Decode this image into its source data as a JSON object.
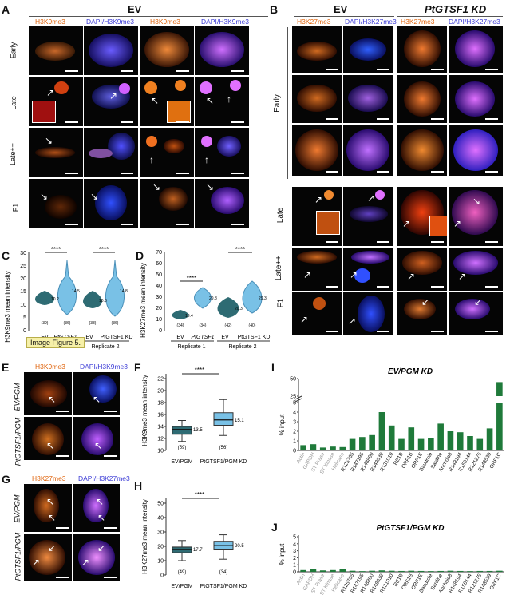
{
  "panels": {
    "A": "A",
    "B": "B",
    "C": "C",
    "D": "D",
    "E": "E",
    "F": "F",
    "G": "G",
    "H": "H",
    "I": "I",
    "J": "J"
  },
  "A": {
    "group_title": "EV",
    "col_headers": [
      "H3K9me3",
      "DAPI/H3K9me3",
      "H3K9me3",
      "DAPI/H3K9me3"
    ],
    "row_labels": [
      "Early",
      "Late",
      "Late++",
      "F1"
    ]
  },
  "B": {
    "group_ev": "EV",
    "group_kd": "PtGTSF1 KD",
    "col_headers": [
      "H3K27me3",
      "DAPI/H3K27me3",
      "H3K27me3",
      "DAPI/H3K27me3"
    ],
    "row_labels": [
      "Early",
      "Late",
      "Late++",
      "F1"
    ]
  },
  "C": {
    "ylabel": "H3K9me3 mean intensity",
    "yticks": [
      "0",
      "5",
      "10",
      "15",
      "20",
      "25",
      "30"
    ],
    "sig": [
      "****",
      "****"
    ],
    "medians": [
      "10.2",
      "14.5",
      "10.3",
      "14.8"
    ],
    "ns": [
      "(39)",
      "(36)",
      "(38)",
      "(36)"
    ],
    "xcats": [
      "EV",
      "PtGTSF1",
      "EV",
      "PtGTSF1 KD"
    ],
    "replicates": [
      "Replicate 2"
    ],
    "tooltip": "Image Figure 5."
  },
  "D": {
    "ylabel": "H3K27me3 mean intensity",
    "yticks": [
      "0",
      "10",
      "20",
      "30",
      "40",
      "50",
      "60",
      "70"
    ],
    "sig": [
      "****",
      "****"
    ],
    "medians": [
      "13.4",
      "29.8",
      "20.3",
      "29.3"
    ],
    "ns": [
      "(34)",
      "(34)",
      "(42)",
      "(40)"
    ],
    "xcats": [
      "EV",
      "PtGTSF1",
      "EV",
      "PtGTSF1 KD"
    ],
    "replicates": [
      "Replicate 1",
      "Replicate 2"
    ]
  },
  "E": {
    "col_headers": [
      "H3K9me3",
      "DAPI/H3K9me3"
    ],
    "row_labels": [
      "EV/PGM",
      "PtGTSF1/PGM"
    ]
  },
  "G": {
    "col_headers": [
      "H3K27me3",
      "DAPI/H3K27me3"
    ],
    "row_labels": [
      "EV/PGM",
      "PtGTSF1/PGM"
    ]
  },
  "F": {
    "ylabel": "H3K9me3 mean intensity",
    "yticks": [
      "10",
      "12",
      "14",
      "16",
      "18",
      "20",
      "22"
    ],
    "sig": "****",
    "xcats": [
      "EV/PGM",
      "PtGTSF1/PGM KD"
    ]
  },
  "H": {
    "ylabel": "H3K27me3 mean intensity",
    "yticks": [
      "0",
      "10",
      "20",
      "30",
      "40",
      "50"
    ],
    "sig": "****",
    "xcats": [
      "EV/PGM",
      "PtGTSF1/PGM KD"
    ]
  },
  "chart_data": [
    {
      "panel": "C",
      "type": "violin",
      "ylabel": "H3K9me3 mean intensity",
      "ylim": [
        0,
        30
      ],
      "categories": [
        "EV",
        "PtGTSF1",
        "EV",
        "PtGTSF1 KD"
      ],
      "medians": [
        10.2,
        14.5,
        10.3,
        14.8
      ],
      "n": [
        39,
        36,
        38,
        36
      ]
    },
    {
      "panel": "D",
      "type": "violin",
      "ylabel": "H3K27me3 mean intensity",
      "ylim": [
        0,
        70
      ],
      "categories": [
        "EV",
        "PtGTSF1",
        "EV",
        "PtGTSF1 KD"
      ],
      "medians": [
        13.4,
        29.8,
        20.3,
        29.3
      ],
      "n": [
        34,
        34,
        42,
        40
      ]
    },
    {
      "panel": "F",
      "type": "box",
      "ylabel": "H3K9me3 mean intensity",
      "ylim": [
        10,
        22
      ],
      "categories": [
        "EV/PGM",
        "PtGTSF1/PGM KD"
      ],
      "medians": [
        13.5,
        15.1
      ],
      "n": [
        59,
        56
      ],
      "q1": [
        12.7,
        14.2
      ],
      "q3": [
        14.0,
        16.3
      ],
      "whisker_low": [
        11.5,
        12.5
      ],
      "whisker_high": [
        15.0,
        18.5
      ],
      "colors": [
        "#2e6b73",
        "#79c1e6"
      ]
    },
    {
      "panel": "H",
      "type": "box",
      "ylabel": "H3K27me3 mean intensity",
      "ylim": [
        0,
        50
      ],
      "categories": [
        "EV/PGM",
        "PtGTSF1/PGM KD"
      ],
      "medians": [
        17.7,
        20.5
      ],
      "n": [
        49,
        34
      ],
      "q1": [
        15.5,
        17.5
      ],
      "q3": [
        19.5,
        23.5
      ],
      "whisker_low": [
        10,
        11
      ],
      "whisker_high": [
        24,
        28
      ],
      "colors": [
        "#2e6b73",
        "#79c1e6"
      ]
    },
    {
      "panel": "I",
      "type": "bar",
      "title": "EV/PGM KD",
      "ylabel": "% input",
      "yticks": [
        "0",
        "1",
        "2",
        "3",
        "4",
        "5",
        "25",
        "50"
      ],
      "axis_break": true,
      "categories": [
        "Actin",
        "GAPDH",
        "ST Prase",
        "ST Kinase",
        "Helicase",
        "R125765",
        "R147195",
        "R148800",
        "R148639",
        "R131010",
        "RE1B",
        "ORF1B",
        "ORF1E",
        "Baudroie",
        "Sardine",
        "Anchois8",
        "R148194",
        "R150144",
        "R121275",
        "R148539",
        "ORF1C"
      ],
      "control_count": 5,
      "values": [
        0.55,
        0.65,
        0.3,
        0.4,
        0.35,
        1.2,
        1.4,
        1.6,
        4.0,
        2.6,
        1.2,
        2.4,
        1.2,
        1.3,
        2.8,
        2.0,
        1.9,
        1.5,
        1.2,
        2.3,
        45
      ]
    },
    {
      "panel": "J",
      "type": "bar",
      "title": "PtGTSF1/PGM KD",
      "ylabel": "% input",
      "yticks": [
        "0",
        "1",
        "2",
        "3",
        "4",
        "5"
      ],
      "categories": [
        "Actin",
        "GAPDH",
        "ST Prase",
        "ST Kinase",
        "Helicase",
        "R125765",
        "R147195",
        "R148800",
        "R148639",
        "R131010",
        "RE1B",
        "ORF1B",
        "ORF1E",
        "Baudroie",
        "Sardine",
        "Anchois8",
        "R148194",
        "R150144",
        "R121275",
        "R148539",
        "ORF1C"
      ],
      "control_count": 5,
      "values": [
        0.25,
        0.35,
        0.2,
        0.25,
        0.35,
        0.15,
        0.1,
        0.15,
        0.2,
        0.15,
        0.12,
        0.15,
        0.12,
        0.1,
        0.12,
        0.15,
        0.12,
        0.1,
        0.12,
        0.12,
        0.15
      ]
    }
  ]
}
